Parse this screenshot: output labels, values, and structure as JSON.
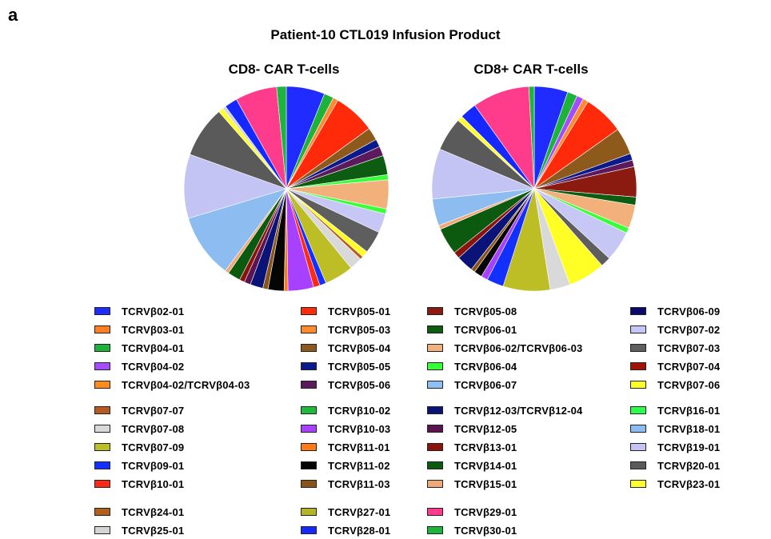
{
  "panel_label": "a",
  "title": "Patient-10 CTL019 Infusion Product",
  "colors": {
    "TCRVβ02-01": "#1f2bff",
    "TCRVβ03-01": "#ff7f27",
    "TCRVβ04-01": "#1db33a",
    "TCRVβ04-02": "#a34dff",
    "TCRVβ04-02/TCRVβ04-03": "#ff8c1a",
    "TCRVβ05-01": "#ff2a0a",
    "TCRVβ05-03": "#ff8a30",
    "TCRVβ05-04": "#8e5a1c",
    "TCRVβ05-05": "#0a1a8a",
    "TCRVβ05-06": "#5c1a5c",
    "TCRVβ05-08": "#8b1a10",
    "TCRVβ06-01": "#0e5c12",
    "TCRVβ06-02/TCRVβ06-03": "#f2b07a",
    "TCRVβ06-04": "#39ff3a",
    "TCRVβ06-07": "#8ec0f5",
    "TCRVβ06-09": "#0a0a6e",
    "TCRVβ07-02": "#c7c7f5",
    "TCRVβ07-03": "#5e5e5e",
    "TCRVβ07-04": "#a01408",
    "TCRVβ07-06": "#ffff26",
    "TCRVβ07-07": "#b85a20",
    "TCRVβ07-08": "#d9d9d9",
    "TCRVβ07-09": "#bdbd26",
    "TCRVβ09-01": "#1230ff",
    "TCRVβ10-01": "#ff2a14",
    "TCRVβ10-02": "#1cbc3a",
    "TCRVβ10-03": "#a840ff",
    "TCRVβ11-01": "#ff7a14",
    "TCRVβ11-02": "#050505",
    "TCRVβ11-03": "#8a5418",
    "TCRVβ12-03/TCRVβ12-04": "#0a1478",
    "TCRVβ12-05": "#5a1450",
    "TCRVβ13-01": "#8a140c",
    "TCRVβ14-01": "#0c5a10",
    "TCRVβ15-01": "#f0a878",
    "TCRVβ16-01": "#2aff4a",
    "TCRVβ18-01": "#8cbcf0",
    "TCRVβ19-01": "#c4c4f4",
    "TCRVβ20-01": "#5a5a5a",
    "TCRVβ23-01": "#ffff30",
    "TCRVβ24-01": "#b0601c",
    "TCRVβ25-01": "#d4d4d4",
    "TCRVβ27-01": "#b4b428",
    "TCRVβ28-01": "#1428ff",
    "TCRVβ29-01": "#ff3c8c",
    "TCRVβ30-01": "#1cb43c"
  },
  "legend": [
    [
      "TCRVβ02-01",
      "TCRVβ03-01",
      "TCRVβ04-01",
      "TCRVβ04-02",
      "TCRVβ04-02/TCRVβ04-03",
      "TCRVβ07-07",
      "TCRVβ07-08",
      "TCRVβ07-09",
      "TCRVβ09-01",
      "TCRVβ10-01",
      "TCRVβ24-01",
      "TCRVβ25-01"
    ],
    [
      "TCRVβ05-01",
      "TCRVβ05-03",
      "TCRVβ05-04",
      "TCRVβ05-05",
      "TCRVβ05-06",
      "TCRVβ10-02",
      "TCRVβ10-03",
      "TCRVβ11-01",
      "TCRVβ11-02",
      "TCRVβ11-03",
      "TCRVβ27-01",
      "TCRVβ28-01"
    ],
    [
      "TCRVβ05-08",
      "TCRVβ06-01",
      "TCRVβ06-02/TCRVβ06-03",
      "TCRVβ06-04",
      "TCRVβ06-07",
      "TCRVβ12-03/TCRVβ12-04",
      "TCRVβ12-05",
      "TCRVβ13-01",
      "TCRVβ14-01",
      "TCRVβ15-01",
      "TCRVβ29-01",
      "TCRVβ30-01"
    ],
    [
      "TCRVβ06-09",
      "TCRVβ07-02",
      "TCRVβ07-03",
      "TCRVβ07-04",
      "TCRVβ07-06",
      "TCRVβ16-01",
      "TCRVβ18-01",
      "TCRVβ19-01",
      "TCRVβ20-01",
      "TCRVβ23-01"
    ]
  ],
  "chart_data": [
    {
      "type": "pie",
      "title": "CD8- CAR T-cells",
      "slices": [
        {
          "label": "TCRVβ02-01",
          "value": 6.0
        },
        {
          "label": "TCRVβ04-01",
          "value": 1.5
        },
        {
          "label": "TCRVβ05-03",
          "value": 0.8
        },
        {
          "label": "TCRVβ05-01",
          "value": 6.5
        },
        {
          "label": "TCRVβ05-04",
          "value": 2.0
        },
        {
          "label": "TCRVβ05-05",
          "value": 1.2
        },
        {
          "label": "TCRVβ05-06",
          "value": 1.5
        },
        {
          "label": "TCRVβ06-01",
          "value": 3.0
        },
        {
          "label": "TCRVβ06-04",
          "value": 0.8
        },
        {
          "label": "TCRVβ06-02/TCRVβ06-03",
          "value": 4.5
        },
        {
          "label": "TCRVβ06-04",
          "value": 0.8
        },
        {
          "label": "TCRVβ07-02",
          "value": 3.0
        },
        {
          "label": "TCRVβ07-03",
          "value": 3.5
        },
        {
          "label": "TCRVβ07-06",
          "value": 1.0
        },
        {
          "label": "TCRVβ07-07",
          "value": 0.5
        },
        {
          "label": "TCRVβ07-08",
          "value": 2.0
        },
        {
          "label": "TCRVβ07-09",
          "value": 4.5
        },
        {
          "label": "TCRVβ09-01",
          "value": 1.0
        },
        {
          "label": "TCRVβ10-01",
          "value": 1.0
        },
        {
          "label": "TCRVβ10-03",
          "value": 4.0
        },
        {
          "label": "TCRVβ11-01",
          "value": 0.6
        },
        {
          "label": "TCRVβ11-02",
          "value": 2.5
        },
        {
          "label": "TCRVβ11-03",
          "value": 0.8
        },
        {
          "label": "TCRVβ12-03/TCRVβ12-04",
          "value": 2.0
        },
        {
          "label": "TCRVβ12-05",
          "value": 1.0
        },
        {
          "label": "TCRVβ13-01",
          "value": 0.8
        },
        {
          "label": "TCRVβ14-01",
          "value": 2.0
        },
        {
          "label": "TCRVβ15-01",
          "value": 0.6
        },
        {
          "label": "TCRVβ18-01",
          "value": 10.0
        },
        {
          "label": "TCRVβ19-01",
          "value": 10.0
        },
        {
          "label": "TCRVβ20-01",
          "value": 8.0
        },
        {
          "label": "TCRVβ23-01",
          "value": 0.8
        },
        {
          "label": "TCRVβ25-01",
          "value": 0.5
        },
        {
          "label": "TCRVβ28-01",
          "value": 2.0
        },
        {
          "label": "TCRVβ29-01",
          "value": 6.5
        },
        {
          "label": "TCRVβ30-01",
          "value": 1.5
        }
      ]
    },
    {
      "type": "pie",
      "title": "CD8+ CAR T-cells",
      "slices": [
        {
          "label": "TCRVβ02-01",
          "value": 5.0
        },
        {
          "label": "TCRVβ04-01",
          "value": 1.5
        },
        {
          "label": "TCRVβ04-02",
          "value": 1.0
        },
        {
          "label": "TCRVβ05-03",
          "value": 0.8
        },
        {
          "label": "TCRVβ05-01",
          "value": 6.0
        },
        {
          "label": "TCRVβ05-04",
          "value": 4.0
        },
        {
          "label": "TCRVβ05-05",
          "value": 1.0
        },
        {
          "label": "TCRVβ05-06",
          "value": 1.0
        },
        {
          "label": "TCRVβ05-08",
          "value": 4.5
        },
        {
          "label": "TCRVβ06-01",
          "value": 1.2
        },
        {
          "label": "TCRVβ06-02/TCRVβ06-03",
          "value": 3.5
        },
        {
          "label": "TCRVβ06-04",
          "value": 0.8
        },
        {
          "label": "TCRVβ07-02",
          "value": 4.5
        },
        {
          "label": "TCRVβ07-03",
          "value": 1.5
        },
        {
          "label": "TCRVβ07-06",
          "value": 5.5
        },
        {
          "label": "TCRVβ07-08",
          "value": 3.0
        },
        {
          "label": "TCRVβ07-09",
          "value": 7.0
        },
        {
          "label": "TCRVβ09-01",
          "value": 2.5
        },
        {
          "label": "TCRVβ10-03",
          "value": 1.0
        },
        {
          "label": "TCRVβ11-02",
          "value": 1.2
        },
        {
          "label": "TCRVβ11-03",
          "value": 0.6
        },
        {
          "label": "TCRVβ12-03/TCRVβ12-04",
          "value": 2.5
        },
        {
          "label": "TCRVβ13-01",
          "value": 1.0
        },
        {
          "label": "TCRVβ14-01",
          "value": 4.0
        },
        {
          "label": "TCRVβ15-01",
          "value": 0.6
        },
        {
          "label": "TCRVβ18-01",
          "value": 4.0
        },
        {
          "label": "TCRVβ19-01",
          "value": 7.5
        },
        {
          "label": "TCRVβ20-01",
          "value": 5.0
        },
        {
          "label": "TCRVβ23-01",
          "value": 0.8
        },
        {
          "label": "TCRVβ28-01",
          "value": 2.5
        },
        {
          "label": "TCRVβ29-01",
          "value": 8.5
        },
        {
          "label": "TCRVβ30-01",
          "value": 0.8
        }
      ]
    }
  ]
}
